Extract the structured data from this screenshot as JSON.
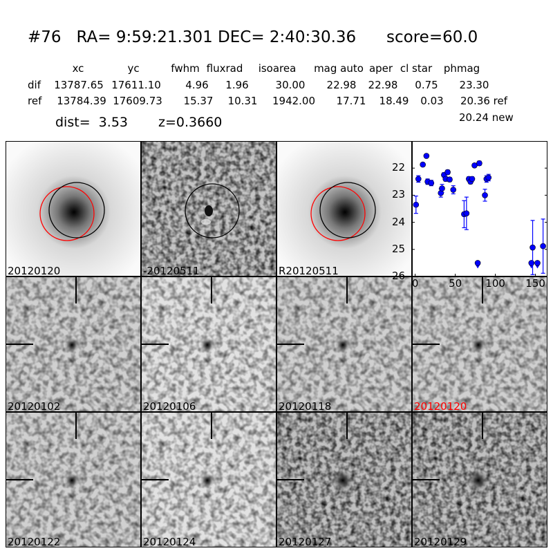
{
  "header": {
    "title": "#76   RA= 9:59:21.301 DEC= 2:40:30.36      score=60.0",
    "columns": [
      "xc",
      "yc",
      "fwhm",
      "fluxrad",
      "isoarea",
      "mag auto",
      "aper",
      "cl star",
      "phmag"
    ],
    "dif": {
      "label": "dif",
      "values": [
        "13787.65",
        "17611.10",
        "4.96",
        "1.96",
        "30.00",
        "22.98",
        "22.98",
        "0.75",
        "23.30"
      ]
    },
    "ref": {
      "label": "ref",
      "values": [
        "13784.39",
        "17609.73",
        "15.37",
        "10.31",
        "1942.00",
        "17.71",
        "18.49",
        "0.03",
        "20.36 ref"
      ]
    },
    "new_mag": "20.24 new",
    "dist": "dist=  3.53",
    "z": "z=0.3660"
  },
  "stamps": [
    {
      "label": "20120120",
      "kind": "ref-galaxy",
      "color": "#000000"
    },
    {
      "label": "-20120511",
      "kind": "diff",
      "color": "#000000"
    },
    {
      "label": "R20120511",
      "kind": "ref-galaxy",
      "color": "#000000"
    },
    {
      "label": "20120102",
      "kind": "epoch",
      "color": "#000000"
    },
    {
      "label": "20120106",
      "kind": "epoch",
      "color": "#000000"
    },
    {
      "label": "20120118",
      "kind": "epoch",
      "color": "#000000"
    },
    {
      "label": "20120120",
      "kind": "epoch",
      "color": "#ff0000"
    },
    {
      "label": "20120122",
      "kind": "epoch",
      "color": "#000000"
    },
    {
      "label": "20120124",
      "kind": "epoch",
      "color": "#000000"
    },
    {
      "label": "20120127",
      "kind": "epoch",
      "color": "#000000"
    },
    {
      "label": "20120129",
      "kind": "epoch",
      "color": "#000000"
    }
  ],
  "chart_data": {
    "type": "scatter",
    "title": "",
    "xlabel": "",
    "ylabel": "",
    "xlim": [
      -4,
      165
    ],
    "ylim": [
      26,
      21
    ],
    "y_inverted": true,
    "xticks": [
      "0",
      "50",
      "100",
      "150"
    ],
    "xtick_values": [
      0,
      50,
      100,
      150
    ],
    "yticks": [
      "22",
      "23",
      "24",
      "25",
      "26"
    ],
    "ytick_values": [
      22,
      23,
      24,
      25,
      26
    ],
    "color": "#0000ff",
    "points": [
      {
        "x": 1,
        "y": 23.35,
        "err": 0.32
      },
      {
        "x": 4,
        "y": 22.4,
        "err": 0.12
      },
      {
        "x": 9.5,
        "y": 21.87,
        "err": 0.06
      },
      {
        "x": 14,
        "y": 21.55,
        "err": 0.04
      },
      {
        "x": 15.5,
        "y": 22.5,
        "err": 0.1
      },
      {
        "x": 20,
        "y": 22.55,
        "err": 0.1
      },
      {
        "x": 32,
        "y": 22.92,
        "err": 0.15
      },
      {
        "x": 33.5,
        "y": 22.75,
        "err": 0.15
      },
      {
        "x": 36,
        "y": 22.25,
        "err": 0.08
      },
      {
        "x": 38,
        "y": 22.4,
        "err": 0.08
      },
      {
        "x": 40.5,
        "y": 22.15,
        "err": 0.08
      },
      {
        "x": 43,
        "y": 22.42,
        "err": 0.08
      },
      {
        "x": 47.5,
        "y": 22.8,
        "err": 0.15
      },
      {
        "x": 61,
        "y": 23.7,
        "err": 0.5
      },
      {
        "x": 64,
        "y": 23.67,
        "err": 0.6
      },
      {
        "x": 67,
        "y": 22.4,
        "err": 0.08
      },
      {
        "x": 69,
        "y": 22.5,
        "err": 0.08
      },
      {
        "x": 71,
        "y": 22.4,
        "err": 0.08
      },
      {
        "x": 74,
        "y": 21.9,
        "err": 0.05
      },
      {
        "x": 78,
        "y": 25.5,
        "err": 0,
        "upper_limit": true
      },
      {
        "x": 80,
        "y": 21.82,
        "err": 0.08
      },
      {
        "x": 87,
        "y": 23.0,
        "err": 0.22
      },
      {
        "x": 89,
        "y": 22.4,
        "err": 0.12
      },
      {
        "x": 91.5,
        "y": 22.35,
        "err": 0.12
      },
      {
        "x": 145,
        "y": 25.5,
        "err": 0,
        "upper_limit": true
      },
      {
        "x": 146.5,
        "y": 24.93,
        "err": 1.0
      },
      {
        "x": 152.5,
        "y": 25.5,
        "err": 0,
        "upper_limit": true
      },
      {
        "x": 159.5,
        "y": 24.88,
        "err": 1.0
      }
    ]
  }
}
